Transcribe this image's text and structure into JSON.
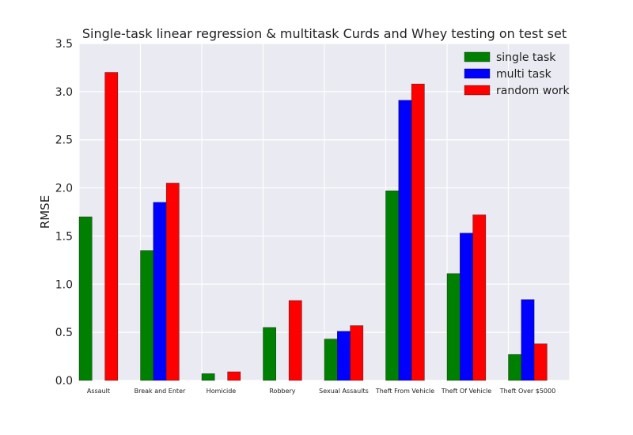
{
  "chart_data": {
    "type": "bar",
    "title": "Single-task linear regression & multitask Curds and Whey testing on test set",
    "xlabel": "",
    "ylabel": "RMSE",
    "ylim": [
      0,
      3.5
    ],
    "yticks": [
      "0.0",
      "0.5",
      "1.0",
      "1.5",
      "2.0",
      "2.5",
      "3.0",
      "3.5"
    ],
    "grid": true,
    "legend_position": "top-right",
    "categories": [
      "Assault",
      "Break and Enter",
      "Homicide",
      "Robbery",
      "Sexual Assaults",
      "Theft From Vehicle",
      "Theft Of Vehicle",
      "Theft Over $5000"
    ],
    "series": [
      {
        "name": "single task",
        "color": "#008000",
        "values": [
          1.7,
          1.35,
          0.07,
          0.55,
          0.43,
          1.97,
          1.11,
          0.27
        ]
      },
      {
        "name": "multi task",
        "color": "#0000ff",
        "values": [
          0.0,
          1.85,
          0.0,
          0.0,
          0.51,
          2.91,
          1.53,
          0.84
        ]
      },
      {
        "name": "random work",
        "color": "#ff0000",
        "values": [
          3.2,
          2.05,
          0.09,
          0.83,
          0.57,
          3.08,
          1.72,
          0.38
        ]
      }
    ]
  }
}
